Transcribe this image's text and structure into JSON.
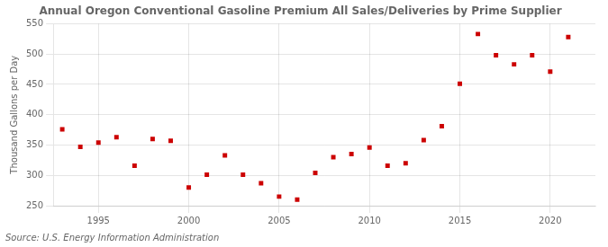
{
  "chart_data": {
    "type": "scatter",
    "title": "Annual Oregon Conventional Gasoline Premium All Sales/Deliveries by Prime Supplier",
    "ylabel": "Thousand Gallons per Day",
    "annotations": [
      "Source: U.S. Energy Information Administration"
    ],
    "x": [
      1993,
      1994,
      1995,
      1996,
      1997,
      1998,
      1999,
      2000,
      2001,
      2002,
      2003,
      2004,
      2005,
      2006,
      2007,
      2008,
      2009,
      2010,
      2011,
      2012,
      2013,
      2014,
      2015,
      2016,
      2017,
      2018,
      2019,
      2020,
      2021
    ],
    "values": [
      376,
      347,
      354,
      363,
      316,
      360,
      357,
      280,
      301,
      333,
      301,
      287,
      265,
      260,
      304,
      330,
      335,
      346,
      316,
      320,
      358,
      381,
      451,
      533,
      498,
      483,
      498,
      471,
      528
    ],
    "color": "#cc0000",
    "marker": "square",
    "xlim": [
      1992.5,
      2022.5
    ],
    "xticks": [
      1995,
      2000,
      2005,
      2010,
      2015,
      2020
    ],
    "ylim": [
      250,
      550
    ],
    "yticks": [
      250,
      300,
      350,
      400,
      450,
      500,
      550
    ],
    "grid": true
  }
}
